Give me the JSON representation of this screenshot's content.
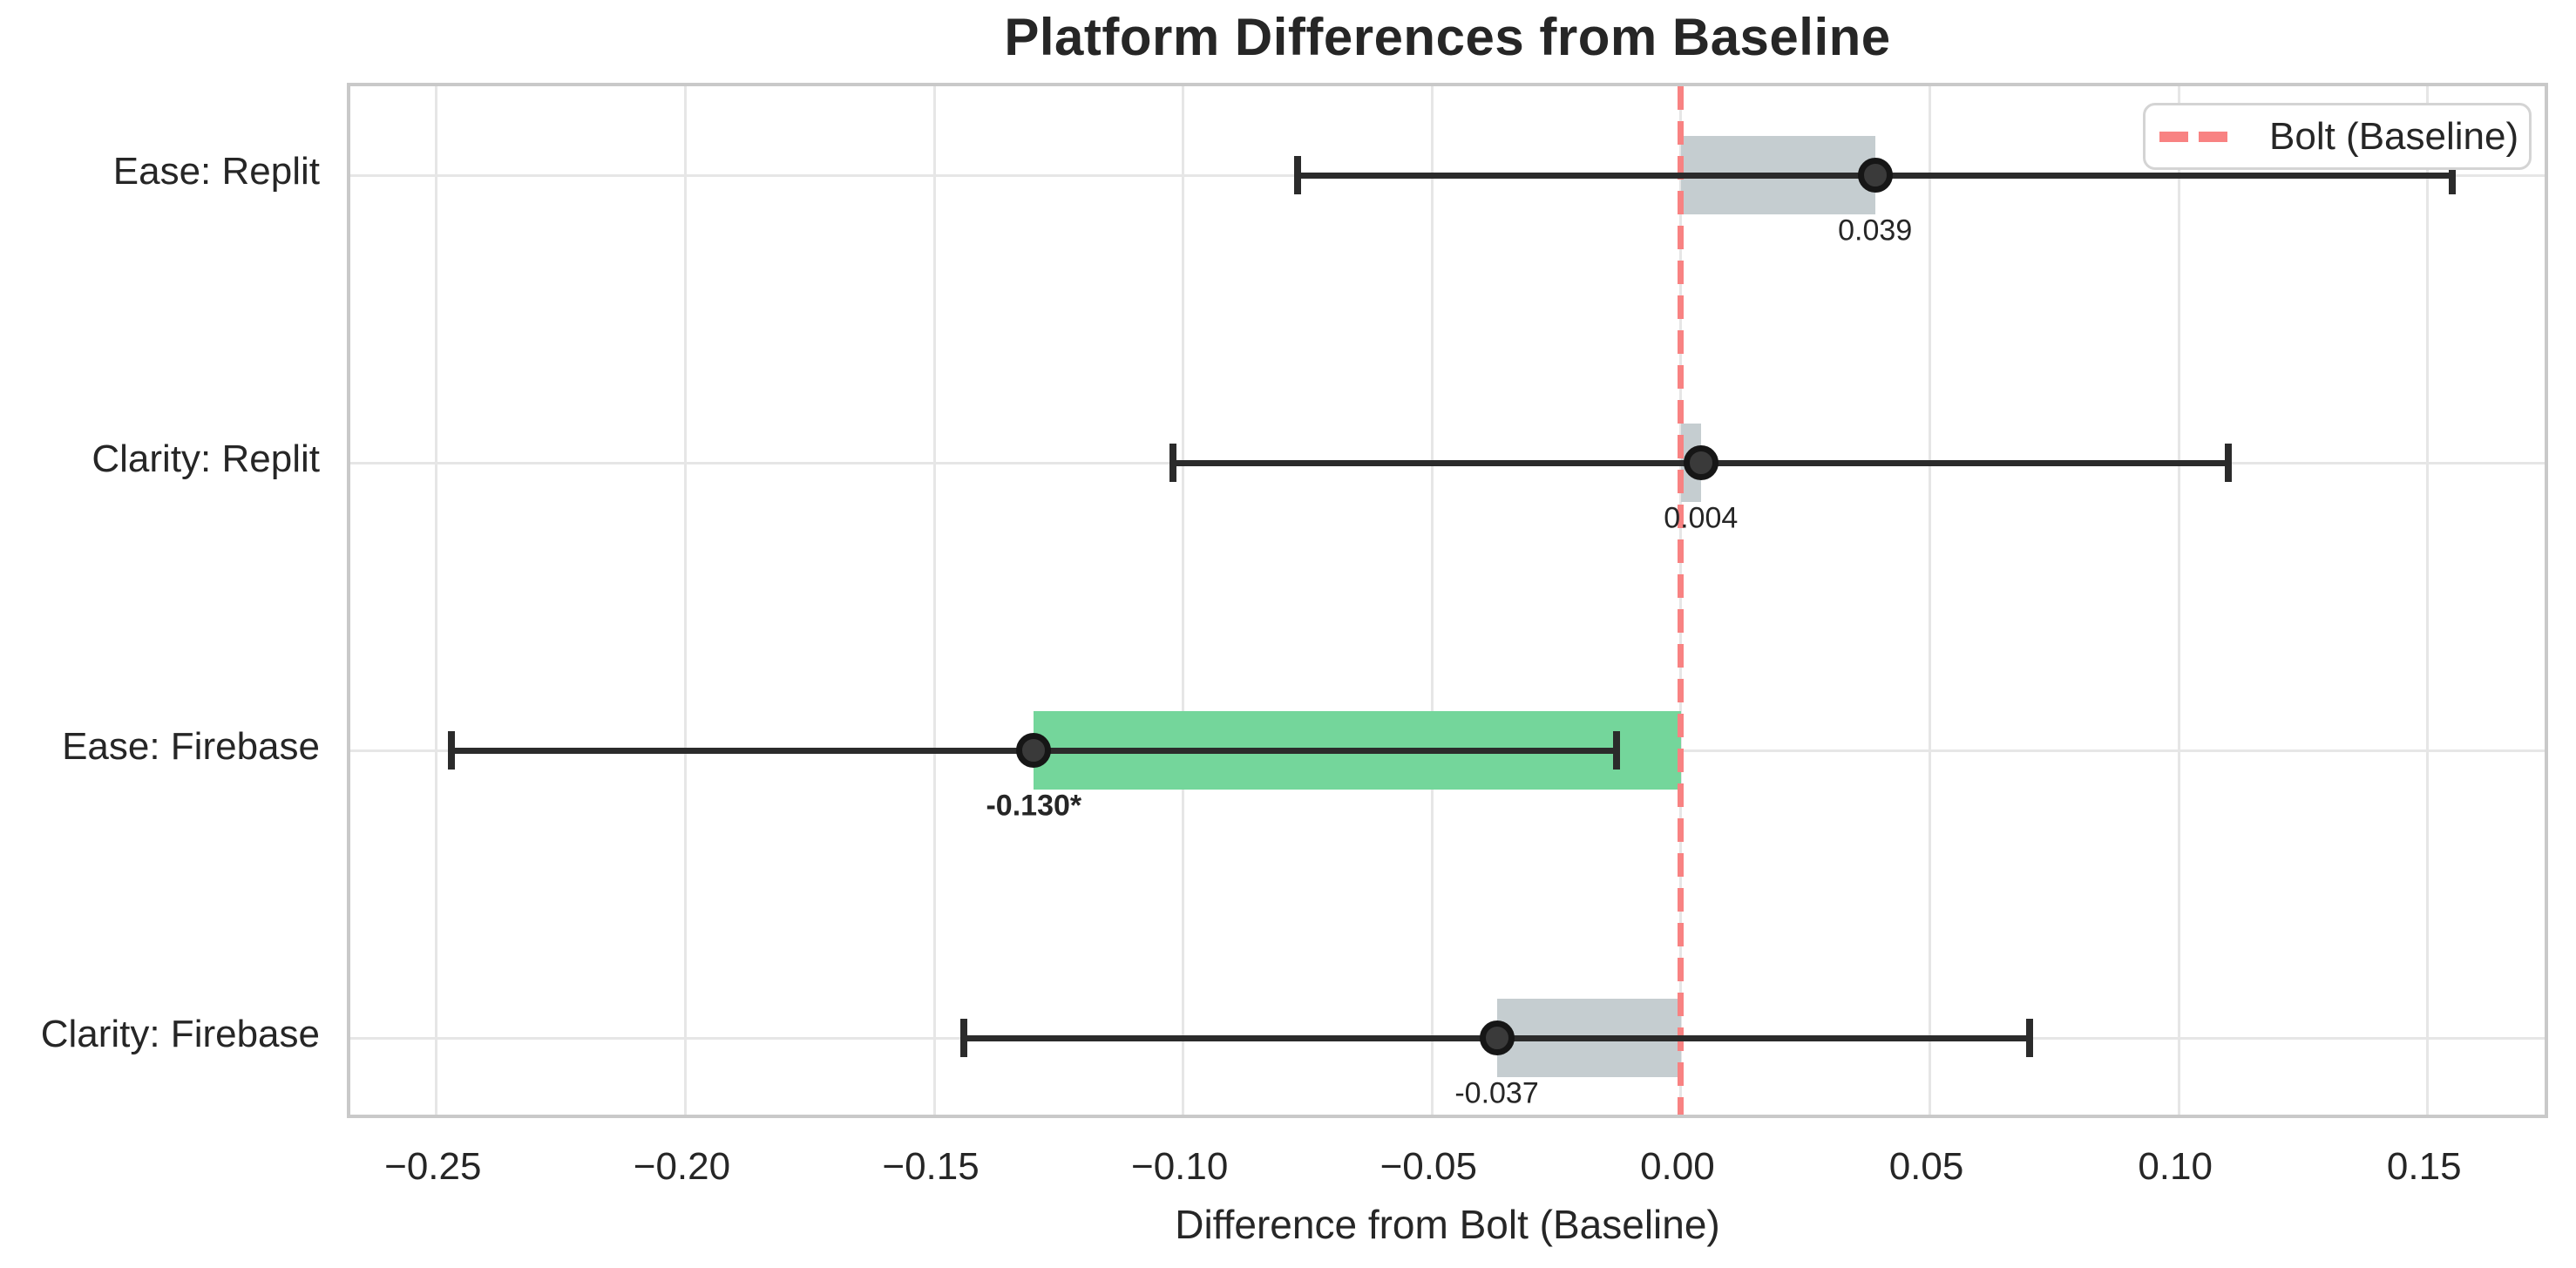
{
  "chart_data": {
    "type": "bar",
    "orientation": "horizontal",
    "title": "Platform Differences from Baseline",
    "xlabel": "Difference from Bolt (Baseline)",
    "ylabel": "",
    "xlim": [
      -0.2673,
      0.1749
    ],
    "x_ticks": [
      -0.25,
      -0.2,
      -0.15,
      -0.1,
      -0.05,
      0.0,
      0.05,
      0.1,
      0.15
    ],
    "x_tick_labels": [
      "−0.25",
      "−0.20",
      "−0.15",
      "−0.10",
      "−0.05",
      "0.00",
      "0.05",
      "0.10",
      "0.15"
    ],
    "grid": true,
    "categories": [
      "Ease: Replit",
      "Clarity: Replit",
      "Ease: Firebase",
      "Clarity: Firebase"
    ],
    "values": [
      0.039,
      0.004,
      -0.13,
      -0.037
    ],
    "ci_low": [
      -0.077,
      -0.102,
      -0.247,
      -0.144
    ],
    "ci_high": [
      0.155,
      0.11,
      -0.013,
      0.07
    ],
    "value_labels": [
      "0.039",
      "0.004",
      "-0.130*",
      "-0.037"
    ],
    "significant": [
      false,
      false,
      true,
      false
    ],
    "bar_colors": [
      "#c5cdd0",
      "#c5cdd0",
      "#74d69b",
      "#c5cdd0"
    ],
    "baseline": {
      "value": 0,
      "label": "Bolt (Baseline)",
      "color": "#f88282",
      "style": "dashed"
    },
    "legend": {
      "position": "upper right",
      "entries": [
        {
          "label": "Bolt (Baseline)",
          "color": "#f88282",
          "dash": true
        }
      ]
    },
    "colors": {
      "bar_default": "#c5cdd0",
      "bar_highlight": "#74d69b",
      "error_bar": "#2b2b2b",
      "point": "#3a3a3a",
      "baseline_line": "#f88282",
      "grid": "#e6e6e6",
      "spine": "#c9c9c9",
      "text": "#262626"
    }
  }
}
